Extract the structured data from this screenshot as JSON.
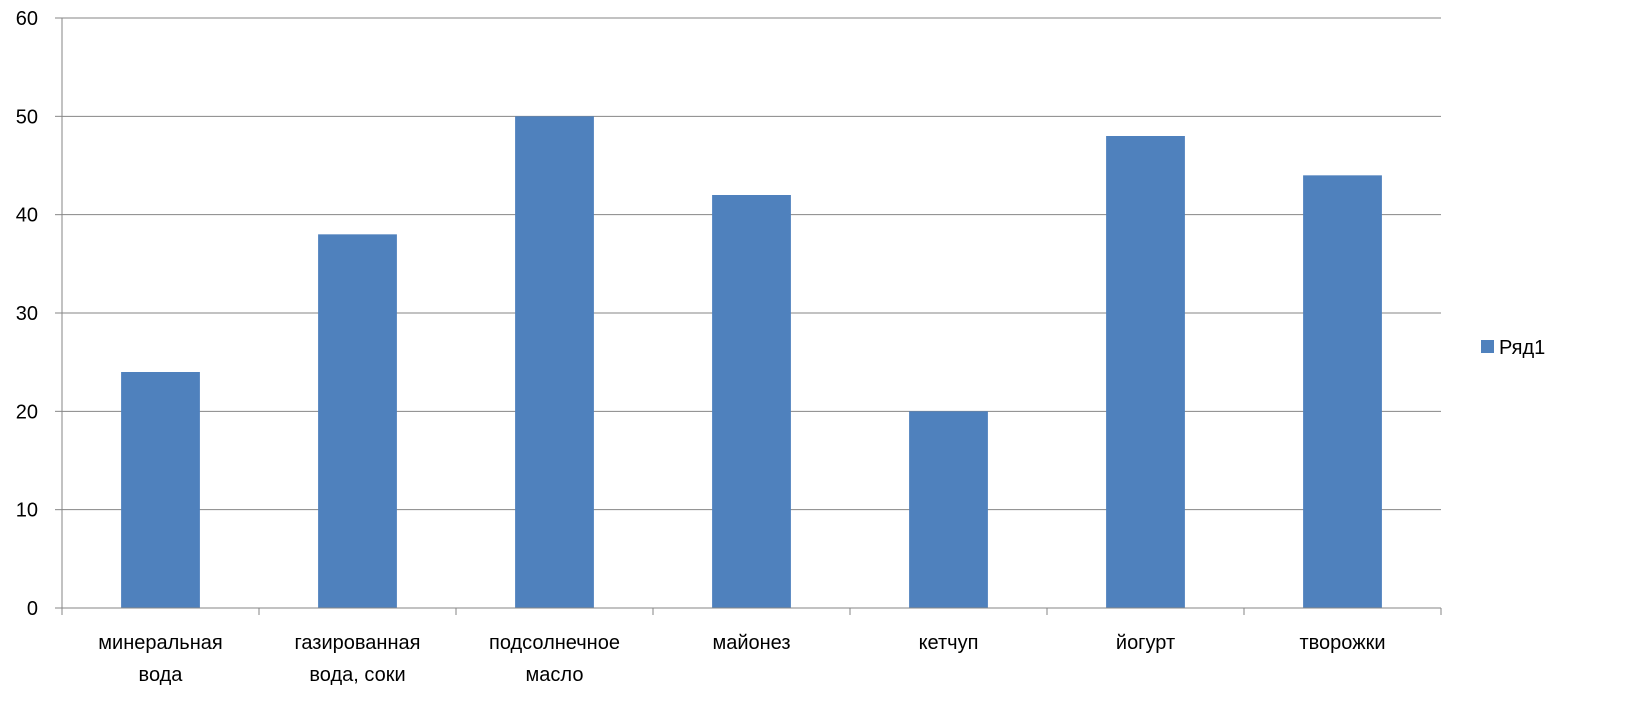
{
  "chart_data": {
    "type": "bar",
    "categories": [
      [
        "минеральная",
        "вода"
      ],
      [
        "газированная",
        "вода, соки"
      ],
      [
        "подсолнечное",
        "масло"
      ],
      [
        "майонез"
      ],
      [
        "кетчуп"
      ],
      [
        "йогурт"
      ],
      [
        "творожки"
      ]
    ],
    "series": [
      {
        "name": "Ряд1",
        "values": [
          24,
          38,
          50,
          42,
          20,
          48,
          44
        ],
        "color": "#4F81BD"
      }
    ],
    "ylim": [
      0,
      60
    ],
    "yticks": [
      0,
      10,
      20,
      30,
      40,
      50,
      60
    ],
    "grid": true,
    "legend": "right",
    "title": "",
    "xlabel": "",
    "ylabel": ""
  }
}
